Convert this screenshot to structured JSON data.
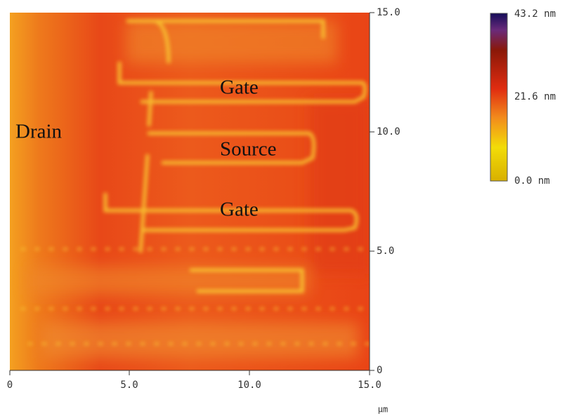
{
  "annotations": [
    "Drain",
    "Gate",
    "Source",
    "Gate"
  ],
  "x_axis": {
    "ticks": [
      "0",
      "5.0",
      "10.0",
      "15.0"
    ],
    "unit": "µm"
  },
  "y_axis": {
    "ticks": [
      "15.0",
      "10.0",
      "5.0",
      "0"
    ]
  },
  "colorbar": {
    "labels": [
      "43.2 nm",
      "21.6 nm",
      "0.0 nm"
    ]
  }
}
